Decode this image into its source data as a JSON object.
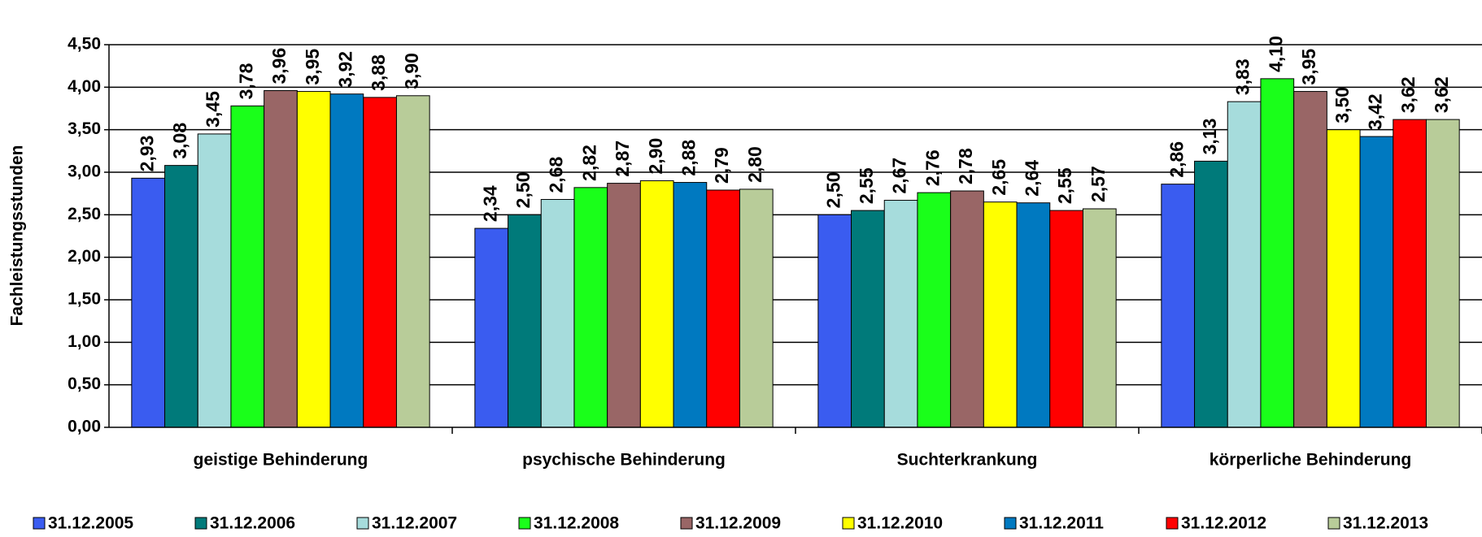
{
  "chart_data": {
    "type": "bar",
    "y_label": "Fachleistungsstunden",
    "categories": [
      "geistige Behinderung",
      "psychische Behinderung",
      "Suchterkrankung",
      "körperliche Behinderung"
    ],
    "series": [
      {
        "name": "31.12.2005",
        "color": "#3a5cf0",
        "values": [
          2.93,
          2.34,
          2.5,
          2.86
        ],
        "value_labels": [
          "2,93",
          "2,34",
          "2,50",
          "2,86"
        ]
      },
      {
        "name": "31.12.2006",
        "color": "#007a7a",
        "values": [
          3.08,
          2.5,
          2.55,
          3.13
        ],
        "value_labels": [
          "3,08",
          "2,50",
          "2,55",
          "3,13"
        ]
      },
      {
        "name": "31.12.2007",
        "color": "#a6dcdc",
        "values": [
          3.45,
          2.68,
          2.67,
          3.83
        ],
        "value_labels": [
          "3,45",
          "2,68",
          "2,67",
          "3,83"
        ]
      },
      {
        "name": "31.12.2008",
        "color": "#1aff1a",
        "values": [
          3.78,
          2.82,
          2.76,
          4.1
        ],
        "value_labels": [
          "3,78",
          "2,82",
          "2,76",
          "4,10"
        ]
      },
      {
        "name": "31.12.2009",
        "color": "#996666",
        "values": [
          3.96,
          2.87,
          2.78,
          3.95
        ],
        "value_labels": [
          "3,96",
          "2,87",
          "2,78",
          "3,95"
        ]
      },
      {
        "name": "31.12.2010",
        "color": "#ffff00",
        "values": [
          3.95,
          2.9,
          2.65,
          3.5
        ],
        "value_labels": [
          "3,95",
          "2,90",
          "2,65",
          "3,50"
        ]
      },
      {
        "name": "31.12.2011",
        "color": "#0079c0",
        "values": [
          3.92,
          2.88,
          2.64,
          3.42
        ],
        "value_labels": [
          "3,92",
          "2,88",
          "2,64",
          "3,42"
        ]
      },
      {
        "name": "31.12.2012",
        "color": "#ff0000",
        "values": [
          3.88,
          2.79,
          2.55,
          3.62
        ],
        "value_labels": [
          "3,88",
          "2,79",
          "2,55",
          "3,62"
        ]
      },
      {
        "name": "31.12.2013",
        "color": "#b8cc99",
        "values": [
          3.9,
          2.8,
          2.57,
          3.62
        ],
        "value_labels": [
          "3,90",
          "2,80",
          "2,57",
          "3,62"
        ]
      }
    ],
    "ylim": [
      0,
      4.5
    ],
    "yticks": [
      {
        "value": 0,
        "label": "0,00"
      },
      {
        "value": 0.5,
        "label": "0,50"
      },
      {
        "value": 1,
        "label": "1,00"
      },
      {
        "value": 1.5,
        "label": "1,50"
      },
      {
        "value": 2,
        "label": "2,00"
      },
      {
        "value": 2.5,
        "label": "2,50"
      },
      {
        "value": 3,
        "label": "3,00"
      },
      {
        "value": 3.5,
        "label": "3,50"
      },
      {
        "value": 4,
        "label": "4,00"
      },
      {
        "value": 4.5,
        "label": "4,50"
      }
    ],
    "grid": true,
    "legend": "bottom"
  }
}
